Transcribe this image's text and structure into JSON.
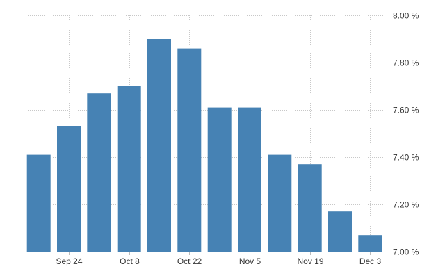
{
  "chart_data": {
    "type": "bar",
    "title": "",
    "xlabel": "",
    "ylabel": "",
    "x": [
      "2018-09-17",
      "2018-09-24",
      "2018-10-01",
      "2018-10-08",
      "2018-10-15",
      "2018-10-22",
      "2018-10-29",
      "2018-11-05",
      "2018-11-12",
      "2018-11-19",
      "2018-11-26",
      "2018-12-03"
    ],
    "values": [
      7.41,
      7.53,
      7.67,
      7.7,
      7.9,
      7.86,
      7.61,
      7.61,
      7.41,
      7.37,
      7.17,
      7.07
    ],
    "ylim": [
      7.0,
      8.0
    ],
    "y_ticks": [
      "7.00 %",
      "7.20 %",
      "7.40 %",
      "7.60 %",
      "7.80 %",
      "8.00 %"
    ],
    "x_ticks": [
      {
        "label": "Sep 24",
        "date": "2018-09-24"
      },
      {
        "label": "Oct 8",
        "date": "2018-10-08"
      },
      {
        "label": "Oct 22",
        "date": "2018-10-22"
      },
      {
        "label": "Nov 5",
        "date": "2018-11-05"
      },
      {
        "label": "Nov 19",
        "date": "2018-11-19"
      },
      {
        "label": "Dec 3",
        "date": "2018-12-03"
      }
    ],
    "y_axis_position": "right",
    "grid": true,
    "bar_color": "#4682b4"
  }
}
